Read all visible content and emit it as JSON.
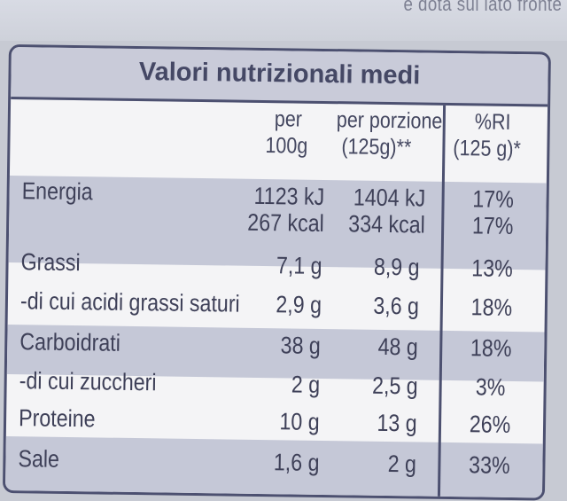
{
  "top_text": "e dota sul lato fronte",
  "title": "Valori nutrizionali medi",
  "headers": {
    "per100_line1": "per",
    "per100_line2": "100g",
    "portion_line1": "per porzione",
    "portion_line2": "(125g)**",
    "ri_line1": "%RI",
    "ri_line2": "(125 g)*"
  },
  "rows": [
    {
      "name": "Energia",
      "per100": "1123 kJ",
      "portion": "1404 kJ",
      "ri": "17%",
      "per100_b": "267 kcal",
      "portion_b": "334 kcal",
      "ri_b": "17%"
    },
    {
      "name": "Grassi",
      "per100": "7,1 g",
      "portion": "8,9 g",
      "ri": "13%"
    },
    {
      "name": "-di cui acidi grassi saturi",
      "per100": "2,9 g",
      "portion": "3,6 g",
      "ri": "18%"
    },
    {
      "name": "Carboidrati",
      "per100": "38 g",
      "portion": "48 g",
      "ri": "18%"
    },
    {
      "name": "-di cui zuccheri",
      "per100": "2 g",
      "portion": "2,5 g",
      "ri": "3%"
    },
    {
      "name": "Proteine",
      "per100": "10 g",
      "portion": "13 g",
      "ri": "26%"
    },
    {
      "name": "Sale",
      "per100": "1,6 g",
      "portion": "2 g",
      "ri": "33%"
    }
  ],
  "colors": {
    "band": "#c5c8d7",
    "border": "#4c5070",
    "text": "#3e4058"
  }
}
